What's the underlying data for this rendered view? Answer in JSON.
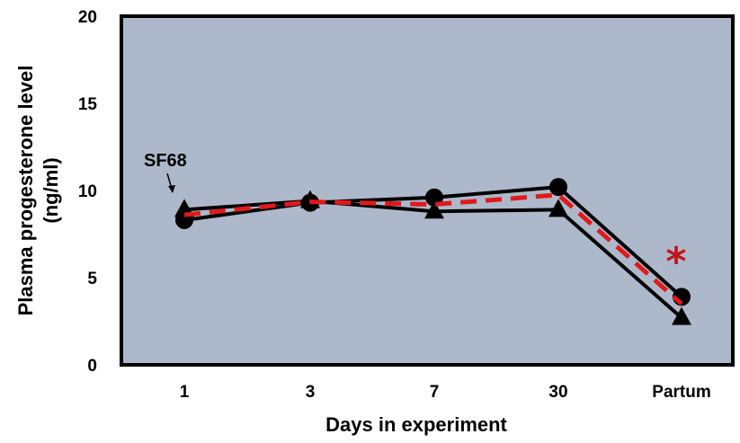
{
  "chart_data": {
    "type": "line",
    "categories": [
      "1",
      "3",
      "7",
      "30",
      "Partum"
    ],
    "ylim": [
      0,
      20
    ],
    "yticks": [
      0,
      5,
      10,
      15,
      20
    ],
    "xlabel": "Days in experiment",
    "ylabel_line1": "Plasma progesterone level",
    "ylabel_line2": "(ng/ml)",
    "grid": false,
    "plot_background": "#adb9ca",
    "series": [
      {
        "marker": "triangle",
        "color": "#000000",
        "dash": false,
        "values": [
          8.9,
          9.4,
          8.8,
          8.9,
          2.7
        ]
      },
      {
        "marker": "circle",
        "color": "#000000",
        "dash": false,
        "values": [
          8.3,
          9.3,
          9.6,
          10.2,
          3.9
        ]
      },
      {
        "marker": "none",
        "color": "#e0191b",
        "dash": true,
        "values": [
          8.6,
          9.35,
          9.2,
          9.75,
          3.5
        ]
      }
    ],
    "annotations": {
      "sf68_label": "SF68",
      "significance_mark": "*",
      "significance_color": "#c0151b"
    }
  }
}
